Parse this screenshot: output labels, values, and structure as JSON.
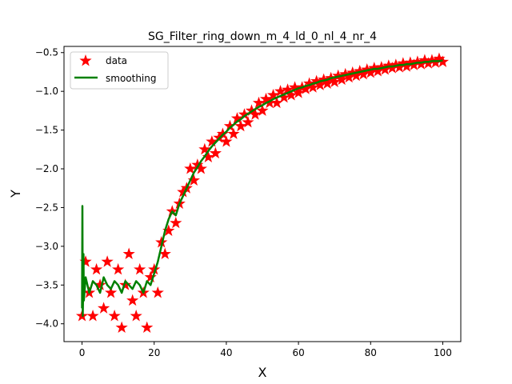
{
  "chart_data": {
    "type": "scatter",
    "title": "SG_Filter_ring_down_m_4_ld_0_nl_4_nr_4",
    "xlabel": "X",
    "ylabel": "Y",
    "xlim": [
      -5,
      105
    ],
    "ylim": [
      -4.23,
      -0.42
    ],
    "xticks": [
      0,
      20,
      40,
      60,
      80,
      100
    ],
    "yticks": [
      -4.0,
      -3.5,
      -3.0,
      -2.5,
      -2.0,
      -1.5,
      -1.0,
      -0.5
    ],
    "xtick_labels": [
      "0",
      "20",
      "40",
      "60",
      "80",
      "100"
    ],
    "ytick_labels": [
      "−4.0",
      "−3.5",
      "−3.0",
      "−2.5",
      "−2.0",
      "−1.5",
      "−1.0",
      "−0.5"
    ],
    "grid": false,
    "legend_position": "upper left",
    "series": [
      {
        "name": "data",
        "kind": "scatter",
        "marker": "star",
        "color": "#ff0000",
        "x": [
          0,
          1,
          2,
          3,
          4,
          5,
          6,
          7,
          8,
          9,
          10,
          11,
          12,
          13,
          14,
          15,
          16,
          17,
          18,
          19,
          20,
          21,
          22,
          23,
          24,
          25,
          26,
          27,
          28,
          29,
          30,
          31,
          32,
          33,
          34,
          35,
          36,
          37,
          38,
          39,
          40,
          41,
          42,
          43,
          44,
          45,
          46,
          47,
          48,
          49,
          50,
          51,
          52,
          53,
          54,
          55,
          56,
          57,
          58,
          59,
          60,
          61,
          62,
          63,
          64,
          65,
          66,
          67,
          68,
          69,
          70,
          71,
          72,
          73,
          74,
          75,
          76,
          77,
          78,
          79,
          80,
          81,
          82,
          83,
          84,
          85,
          86,
          87,
          88,
          89,
          90,
          91,
          92,
          93,
          94,
          95,
          96,
          97,
          98,
          99,
          100
        ],
        "y": [
          -3.9,
          -3.2,
          -3.6,
          -3.9,
          -3.3,
          -3.5,
          -3.8,
          -3.2,
          -3.6,
          -3.9,
          -3.3,
          -4.05,
          -3.5,
          -3.1,
          -3.7,
          -3.9,
          -3.3,
          -3.6,
          -4.05,
          -3.4,
          -3.3,
          -3.6,
          -2.95,
          -3.1,
          -2.8,
          -2.55,
          -2.7,
          -2.45,
          -2.3,
          -2.25,
          -2.0,
          -2.15,
          -1.95,
          -2.0,
          -1.75,
          -1.85,
          -1.65,
          -1.8,
          -1.6,
          -1.55,
          -1.65,
          -1.45,
          -1.55,
          -1.35,
          -1.45,
          -1.3,
          -1.4,
          -1.25,
          -1.3,
          -1.15,
          -1.25,
          -1.1,
          -1.15,
          -1.05,
          -1.15,
          -1.0,
          -1.08,
          -0.98,
          -1.05,
          -0.95,
          -1.02,
          -0.95,
          -0.97,
          -0.9,
          -0.95,
          -0.87,
          -0.92,
          -0.85,
          -0.9,
          -0.83,
          -0.88,
          -0.8,
          -0.85,
          -0.78,
          -0.82,
          -0.76,
          -0.8,
          -0.74,
          -0.78,
          -0.72,
          -0.76,
          -0.7,
          -0.74,
          -0.69,
          -0.72,
          -0.67,
          -0.7,
          -0.66,
          -0.69,
          -0.64,
          -0.68,
          -0.63,
          -0.66,
          -0.62,
          -0.65,
          -0.6,
          -0.64,
          -0.6,
          -0.63,
          -0.58,
          -0.62
        ]
      },
      {
        "name": "smoothing",
        "kind": "line",
        "color": "#008000",
        "x": [
          0,
          0.1,
          0.2,
          0.3,
          0.4,
          0.5,
          1,
          2,
          3,
          4,
          5,
          6,
          7,
          8,
          9,
          10,
          11,
          12,
          13,
          14,
          15,
          16,
          17,
          18,
          19,
          20,
          21,
          22,
          23,
          24,
          25,
          26,
          27,
          28,
          29,
          30,
          31,
          32,
          33,
          34,
          35,
          36,
          37,
          38,
          39,
          40,
          41,
          42,
          43,
          44,
          45,
          46,
          47,
          48,
          49,
          50,
          51,
          52,
          53,
          54,
          55,
          56,
          57,
          58,
          59,
          60,
          61,
          62,
          63,
          64,
          65,
          66,
          67,
          68,
          69,
          70,
          71,
          72,
          73,
          74,
          75,
          76,
          77,
          78,
          79,
          80,
          81,
          82,
          83,
          84,
          85,
          86,
          87,
          88,
          89,
          90,
          91,
          92,
          93,
          94,
          95,
          96,
          97,
          98,
          99,
          100
        ],
        "y": [
          -3.8,
          -2.48,
          -3.9,
          -3.6,
          -3.1,
          -3.7,
          -3.4,
          -3.6,
          -3.45,
          -3.5,
          -3.6,
          -3.4,
          -3.5,
          -3.55,
          -3.45,
          -3.5,
          -3.6,
          -3.45,
          -3.5,
          -3.55,
          -3.45,
          -3.5,
          -3.6,
          -3.45,
          -3.5,
          -3.35,
          -3.2,
          -3.0,
          -2.8,
          -2.65,
          -2.55,
          -2.6,
          -2.45,
          -2.35,
          -2.25,
          -2.15,
          -2.05,
          -1.98,
          -1.9,
          -1.84,
          -1.77,
          -1.71,
          -1.66,
          -1.61,
          -1.56,
          -1.52,
          -1.47,
          -1.43,
          -1.39,
          -1.36,
          -1.32,
          -1.29,
          -1.26,
          -1.23,
          -1.2,
          -1.18,
          -1.15,
          -1.13,
          -1.1,
          -1.08,
          -1.06,
          -1.04,
          -1.02,
          -1.0,
          -0.98,
          -0.96,
          -0.95,
          -0.93,
          -0.92,
          -0.9,
          -0.89,
          -0.87,
          -0.86,
          -0.85,
          -0.83,
          -0.82,
          -0.81,
          -0.8,
          -0.79,
          -0.78,
          -0.77,
          -0.76,
          -0.75,
          -0.74,
          -0.73,
          -0.72,
          -0.71,
          -0.71,
          -0.7,
          -0.69,
          -0.68,
          -0.68,
          -0.67,
          -0.66,
          -0.66,
          -0.65,
          -0.65,
          -0.64,
          -0.63,
          -0.63,
          -0.62,
          -0.62,
          -0.61,
          -0.61,
          -0.61,
          -0.6
        ]
      }
    ]
  }
}
